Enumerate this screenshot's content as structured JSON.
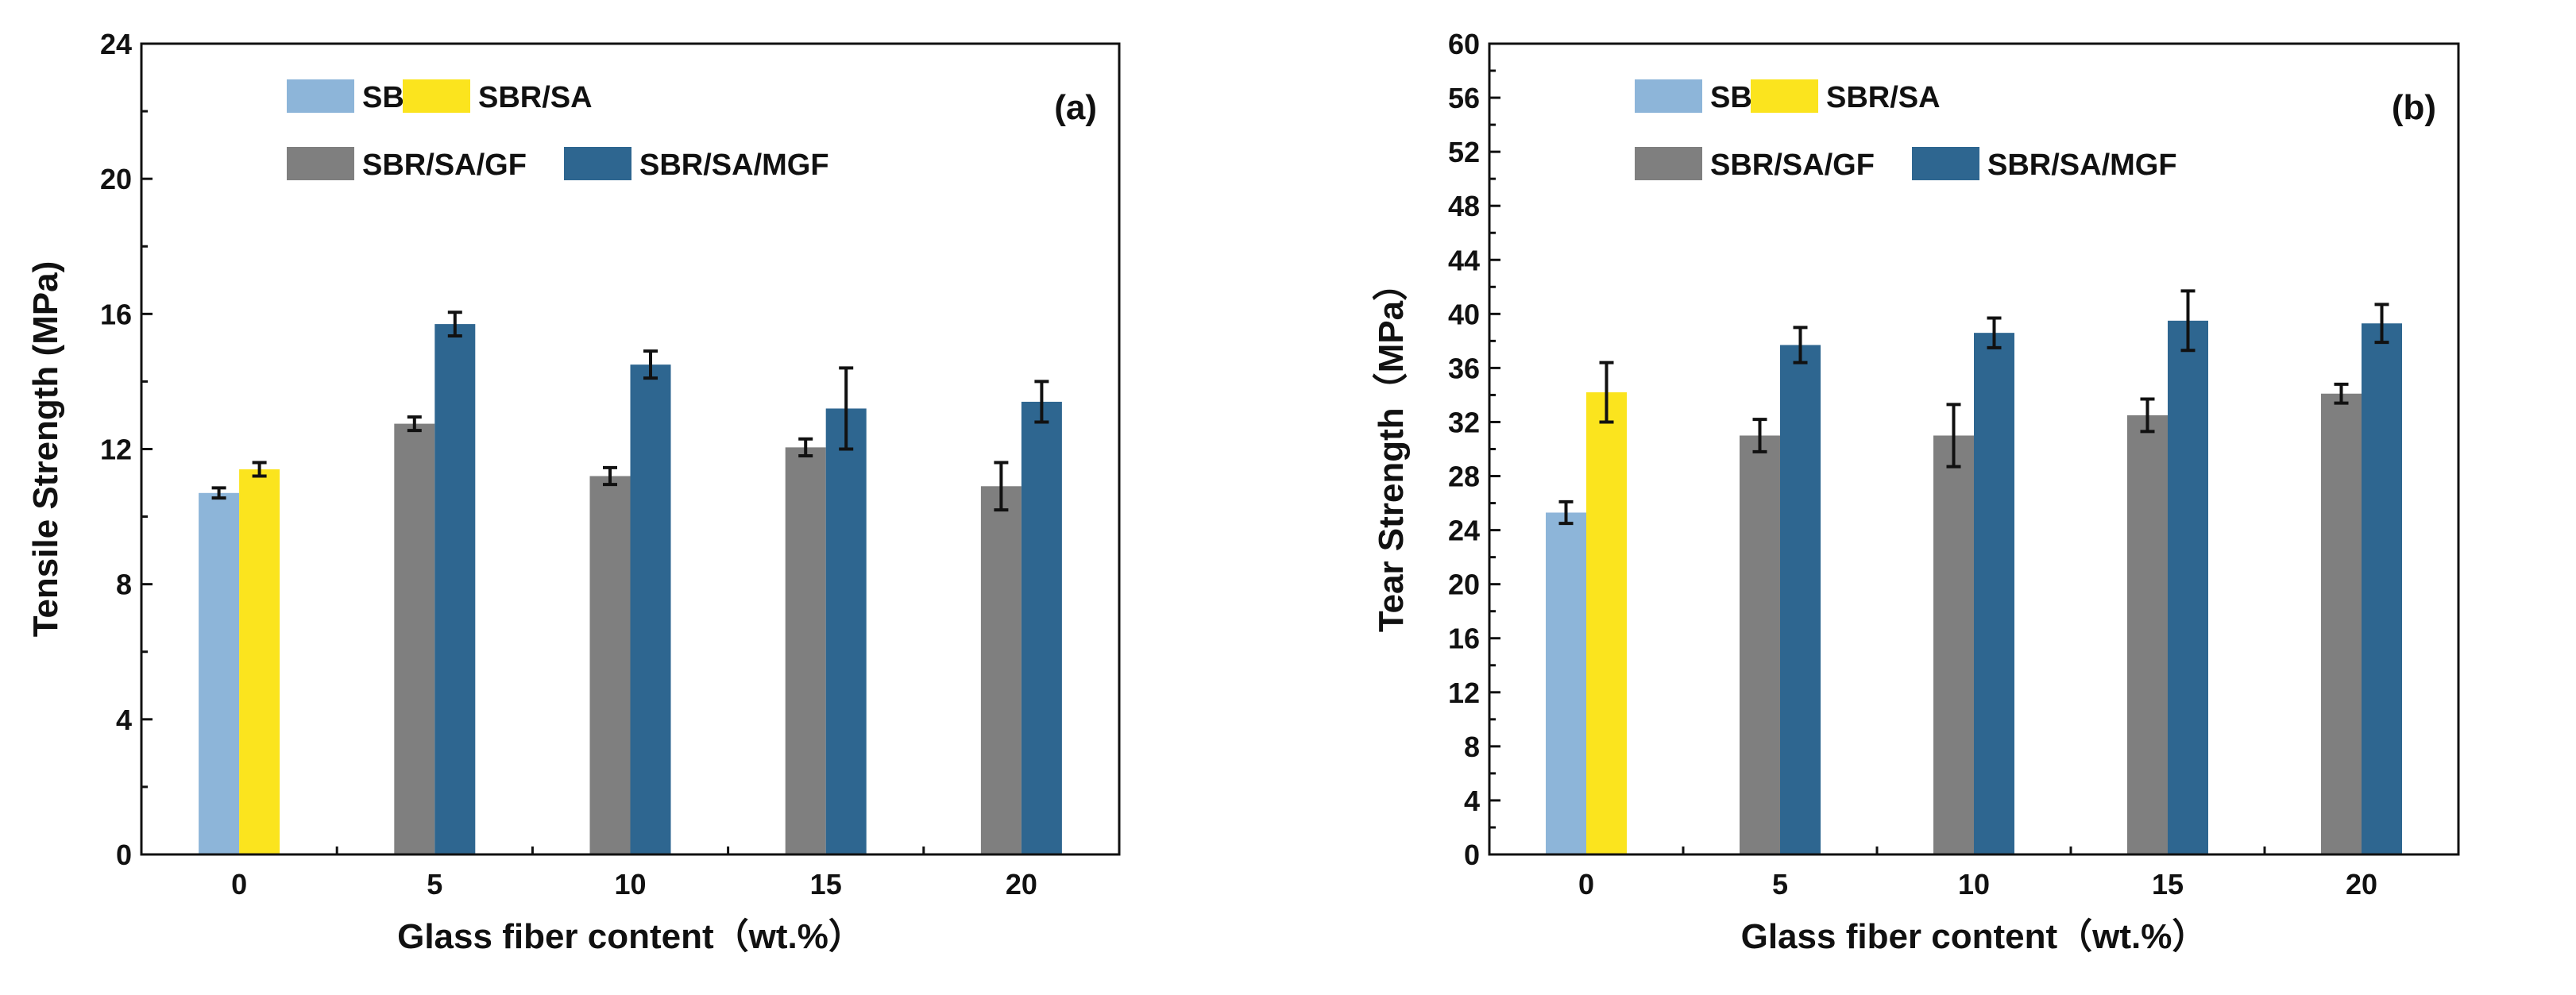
{
  "chart_data": [
    {
      "type": "bar",
      "panel_label": "(a)",
      "xlabel": "Glass fiber content（wt.%）",
      "ylabel": "Tensile Strength (MPa)",
      "ylim": [
        0,
        24
      ],
      "yticks": [
        0,
        4,
        8,
        12,
        16,
        20,
        24
      ],
      "categories": [
        "0",
        "5",
        "10",
        "15",
        "20"
      ],
      "legend": [
        "SBR",
        "SBR/SA",
        "SBR/SA/GF",
        "SBR/SA/MGF"
      ],
      "legend_placement": "top-left",
      "bars": [
        {
          "category": "0",
          "series": "SBR",
          "value": 10.7,
          "error": 0.15
        },
        {
          "category": "0",
          "series": "SBR/SA",
          "value": 11.4,
          "error": 0.2
        },
        {
          "category": "5",
          "series": "SBR/SA/GF",
          "value": 12.75,
          "error": 0.2
        },
        {
          "category": "5",
          "series": "SBR/SA/MGF",
          "value": 15.7,
          "error": 0.35
        },
        {
          "category": "10",
          "series": "SBR/SA/GF",
          "value": 11.2,
          "error": 0.25
        },
        {
          "category": "10",
          "series": "SBR/SA/MGF",
          "value": 14.5,
          "error": 0.4
        },
        {
          "category": "15",
          "series": "SBR/SA/GF",
          "value": 12.05,
          "error": 0.25
        },
        {
          "category": "15",
          "series": "SBR/SA/MGF",
          "value": 13.2,
          "error": 1.2
        },
        {
          "category": "20",
          "series": "SBR/SA/GF",
          "value": 10.9,
          "error": 0.7
        },
        {
          "category": "20",
          "series": "SBR/SA/MGF",
          "value": 13.4,
          "error": 0.6
        }
      ]
    },
    {
      "type": "bar",
      "panel_label": "(b)",
      "xlabel": "Glass fiber content（wt.%）",
      "ylabel": "Tear Strength（MPa）",
      "ylim": [
        0,
        60
      ],
      "yticks": [
        0,
        4,
        8,
        12,
        16,
        20,
        24,
        28,
        32,
        36,
        40,
        44,
        48,
        52,
        56,
        60
      ],
      "categories": [
        "0",
        "5",
        "10",
        "15",
        "20"
      ],
      "legend": [
        "SBR",
        "SBR/SA",
        "SBR/SA/GF",
        "SBR/SA/MGF"
      ],
      "legend_placement": "top-left",
      "bars": [
        {
          "category": "0",
          "series": "SBR",
          "value": 25.3,
          "error": 0.8
        },
        {
          "category": "0",
          "series": "SBR/SA",
          "value": 34.2,
          "error": 2.2
        },
        {
          "category": "5",
          "series": "SBR/SA/GF",
          "value": 31.0,
          "error": 1.2
        },
        {
          "category": "5",
          "series": "SBR/SA/MGF",
          "value": 37.7,
          "error": 1.3
        },
        {
          "category": "10",
          "series": "SBR/SA/GF",
          "value": 31.0,
          "error": 2.3
        },
        {
          "category": "10",
          "series": "SBR/SA/MGF",
          "value": 38.6,
          "error": 1.1
        },
        {
          "category": "15",
          "series": "SBR/SA/GF",
          "value": 32.5,
          "error": 1.2
        },
        {
          "category": "15",
          "series": "SBR/SA/MGF",
          "value": 39.5,
          "error": 2.2
        },
        {
          "category": "20",
          "series": "SBR/SA/GF",
          "value": 34.1,
          "error": 0.7
        },
        {
          "category": "20",
          "series": "SBR/SA/MGF",
          "value": 39.3,
          "error": 1.4
        }
      ]
    }
  ],
  "colors": {
    "SBR": "#8db5d9",
    "SBR/SA": "#fbe41e",
    "SBR/SA/GF": "#7f7f7f",
    "SBR/SA/MGF": "#2e6690",
    "axis": "#111111"
  }
}
